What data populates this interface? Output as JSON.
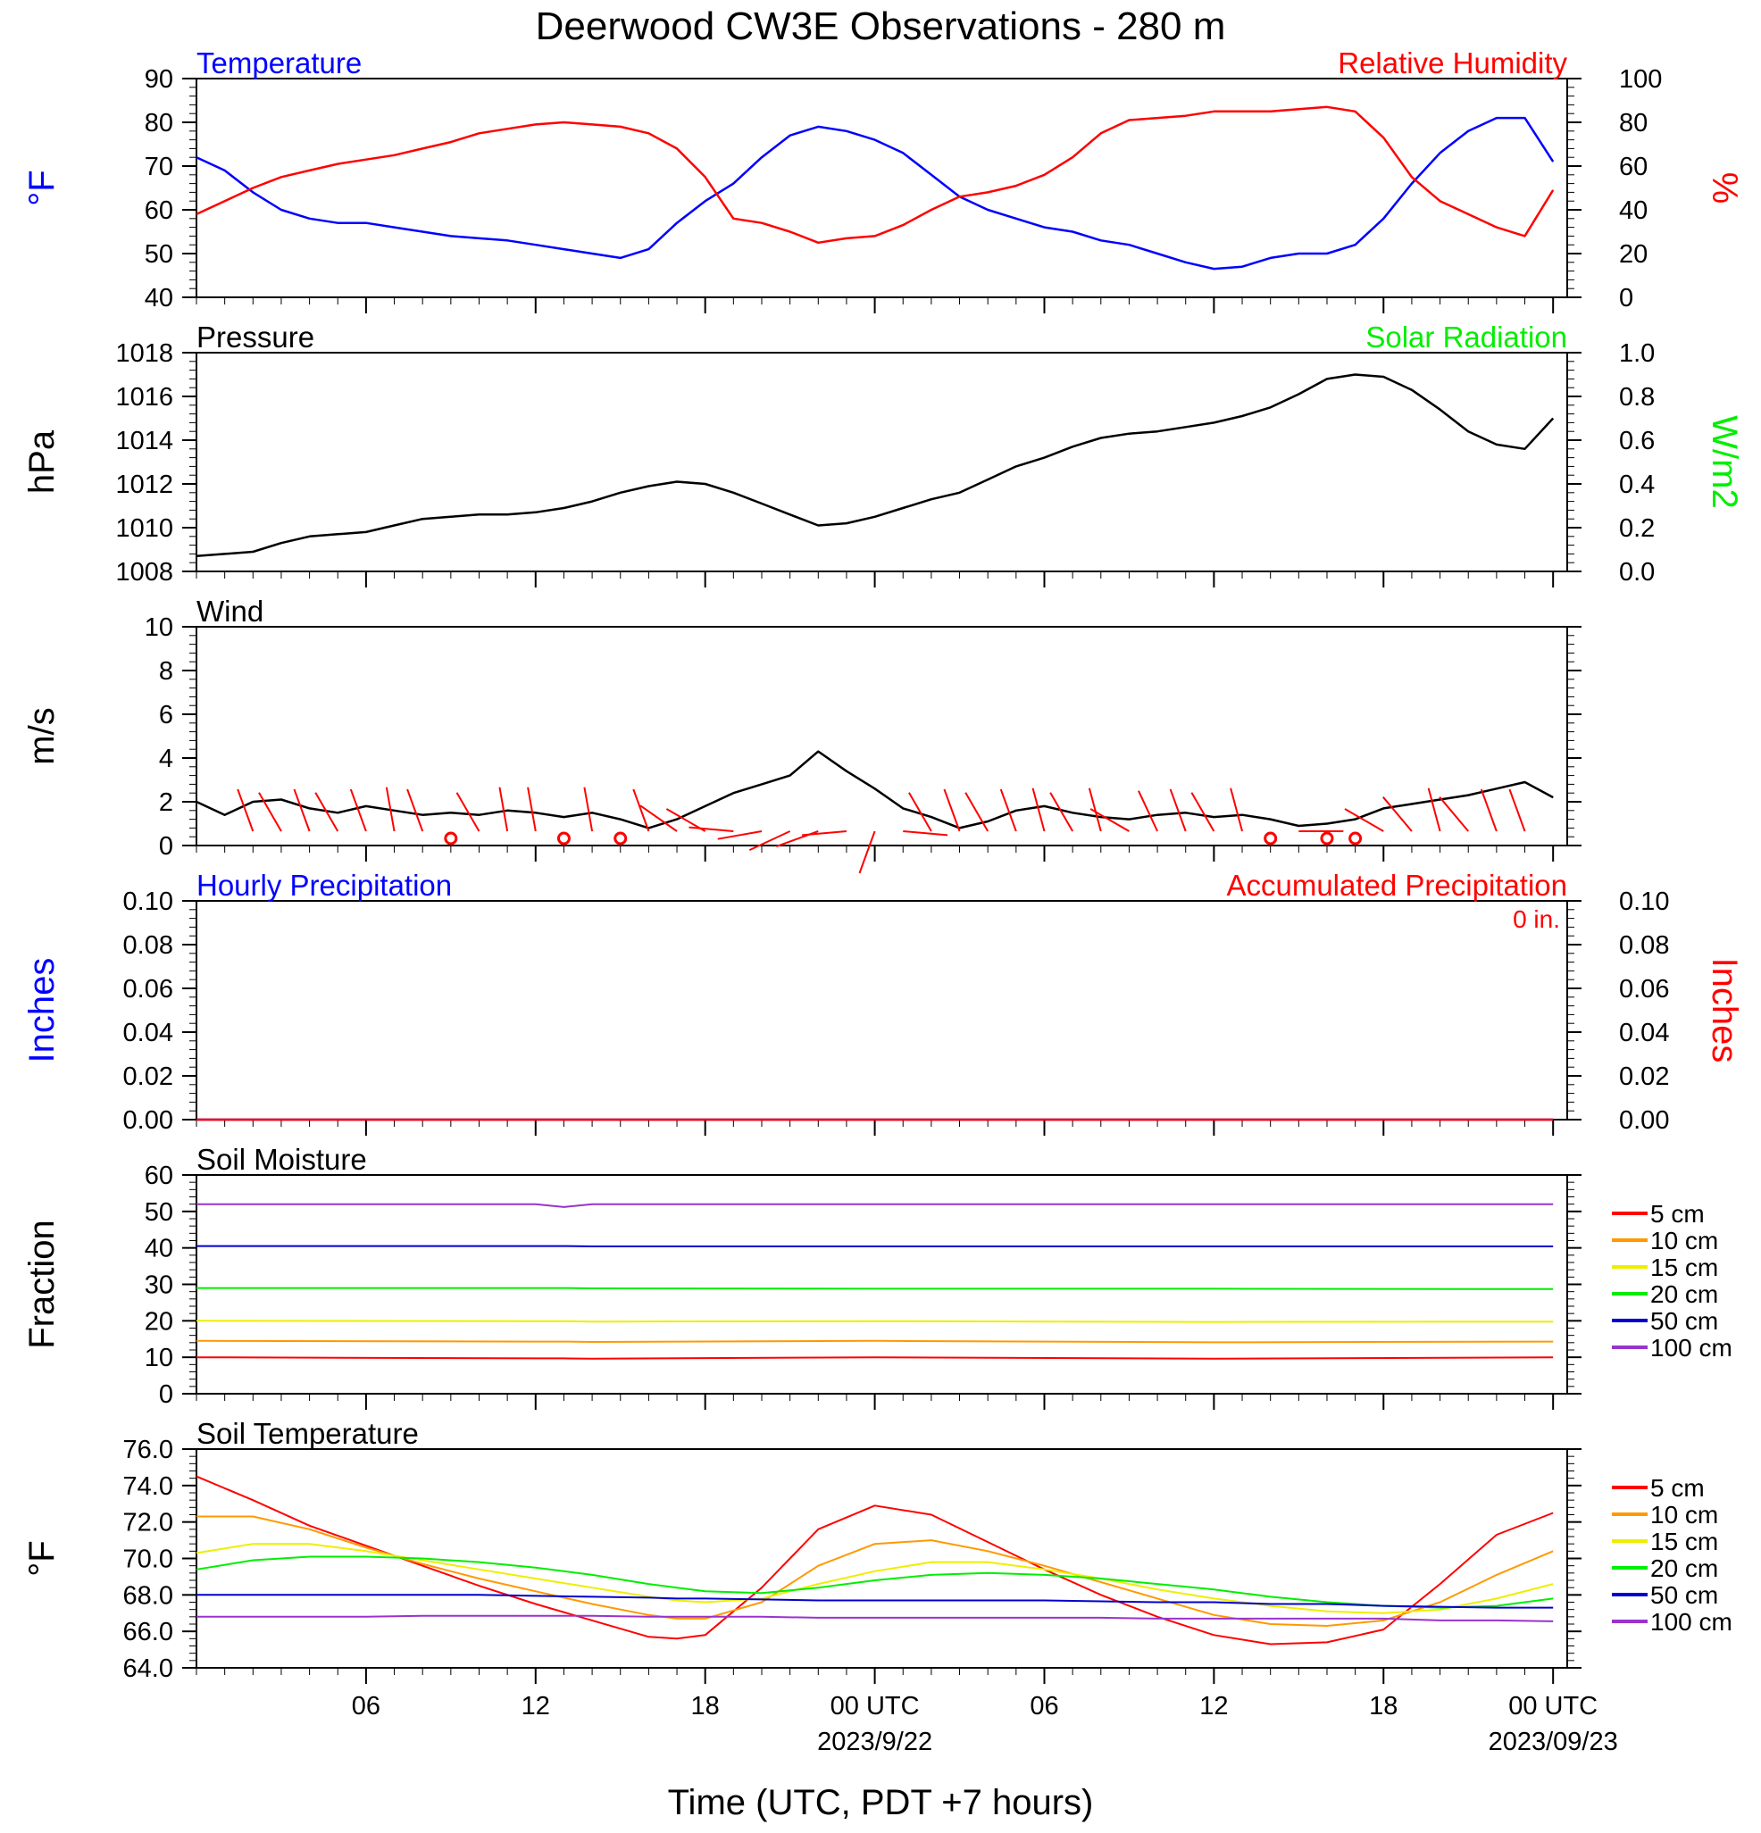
{
  "title": "Deerwood CW3E Observations - 280 m",
  "x_axis": {
    "label": "Time (UTC, PDT +7 hours)",
    "ticks": [
      {
        "h": 6,
        "label": "06"
      },
      {
        "h": 12,
        "label": "12"
      },
      {
        "h": 18,
        "label": "18"
      },
      {
        "h": 24,
        "label": "00 UTC",
        "sub": "2023/9/22"
      },
      {
        "h": 30,
        "label": "06"
      },
      {
        "h": 36,
        "label": "12"
      },
      {
        "h": 42,
        "label": "18"
      },
      {
        "h": 48,
        "label": "00 UTC",
        "sub": "2023/09/23"
      }
    ]
  },
  "colors": {
    "blue": "#0000ff",
    "red": "#ff0000",
    "green": "#00ee00",
    "orange": "#ff9900",
    "yellow": "#eeee00",
    "navy": "#0000cc",
    "purple": "#9933cc"
  },
  "chart_data": [
    {
      "type": "line",
      "title_left": "Temperature",
      "title_right": "Relative Humidity",
      "ylabel_left": "°F",
      "ylabel_right": "%",
      "ylim_left": [
        40,
        90
      ],
      "ylim_right": [
        0,
        100
      ],
      "yticks_left": [
        "40",
        "50",
        "60",
        "70",
        "80",
        "90"
      ],
      "yticks_right": [
        "0",
        "20",
        "40",
        "60",
        "80",
        "100"
      ],
      "x": [
        0,
        1,
        2,
        3,
        4,
        5,
        6,
        7,
        8,
        9,
        10,
        11,
        12,
        13,
        14,
        15,
        16,
        17,
        18,
        19,
        20,
        21,
        22,
        23,
        24,
        25,
        26,
        27,
        28,
        29,
        30,
        31,
        32,
        33,
        34,
        35,
        36,
        37,
        38,
        39,
        40,
        41,
        42,
        43,
        44,
        45,
        46,
        47,
        48
      ],
      "series": [
        {
          "name": "Temperature",
          "axis": "left",
          "color": "#0000ff",
          "values": [
            72,
            69,
            64,
            60,
            58,
            57,
            57,
            56,
            55,
            54,
            53.5,
            53,
            52,
            51,
            50,
            49,
            51,
            57,
            62,
            66,
            72,
            77,
            79,
            78,
            76,
            73,
            68,
            63,
            60,
            58,
            56,
            55,
            53,
            52,
            50,
            48,
            46.5,
            47,
            49,
            50,
            50,
            52,
            58,
            66,
            73,
            78,
            81,
            81,
            71
          ]
        },
        {
          "name": "Relative Humidity",
          "axis": "right",
          "color": "#ff0000",
          "values": [
            38,
            44,
            50,
            55,
            58,
            61,
            63,
            65,
            68,
            71,
            75,
            77,
            79,
            80,
            79,
            78,
            75,
            68,
            55,
            36,
            34,
            30,
            25,
            27,
            28,
            33,
            40,
            46,
            48,
            51,
            56,
            64,
            75,
            81,
            82,
            83,
            85,
            85,
            85,
            86,
            87,
            85,
            73,
            55,
            44,
            38,
            32,
            28,
            49
          ]
        }
      ]
    },
    {
      "type": "line",
      "title_left": "Pressure",
      "title_right": "Solar Radiation",
      "ylabel_left": "hPa",
      "ylabel_right": "W/m2",
      "ylim_left": [
        1008,
        1018
      ],
      "ylim_right": [
        0.0,
        1.0
      ],
      "yticks_left": [
        "1008",
        "1010",
        "1012",
        "1014",
        "1016",
        "1018"
      ],
      "yticks_right": [
        "0.0",
        "0.2",
        "0.4",
        "0.6",
        "0.8",
        "1.0"
      ],
      "x": [
        0,
        1,
        2,
        3,
        4,
        5,
        6,
        7,
        8,
        9,
        10,
        11,
        12,
        13,
        14,
        15,
        16,
        17,
        18,
        19,
        20,
        21,
        22,
        23,
        24,
        25,
        26,
        27,
        28,
        29,
        30,
        31,
        32,
        33,
        34,
        35,
        36,
        37,
        38,
        39,
        40,
        41,
        42,
        43,
        44,
        45,
        46,
        47,
        48
      ],
      "series": [
        {
          "name": "Pressure",
          "axis": "left",
          "color": "#000000",
          "values": [
            1008.7,
            1008.8,
            1008.9,
            1009.3,
            1009.6,
            1009.7,
            1009.8,
            1010.1,
            1010.4,
            1010.5,
            1010.6,
            1010.6,
            1010.7,
            1010.9,
            1011.2,
            1011.6,
            1011.9,
            1012.1,
            1012.0,
            1011.6,
            1011.1,
            1010.6,
            1010.1,
            1010.2,
            1010.5,
            1010.9,
            1011.3,
            1011.6,
            1012.2,
            1012.8,
            1013.2,
            1013.7,
            1014.1,
            1014.3,
            1014.4,
            1014.6,
            1014.8,
            1015.1,
            1015.5,
            1016.1,
            1016.8,
            1017.0,
            1016.9,
            1016.3,
            1015.4,
            1014.4,
            1013.8,
            1013.6,
            1015.0
          ]
        }
      ]
    },
    {
      "type": "line",
      "title_left": "Wind",
      "ylabel_left": "m/s",
      "ylim_left": [
        0,
        10
      ],
      "yticks_left": [
        "0",
        "2",
        "4",
        "6",
        "8",
        "10"
      ],
      "x": [
        0,
        1,
        2,
        3,
        4,
        5,
        6,
        7,
        8,
        9,
        10,
        11,
        12,
        13,
        14,
        15,
        16,
        17,
        18,
        19,
        20,
        21,
        22,
        23,
        24,
        25,
        26,
        27,
        28,
        29,
        30,
        31,
        32,
        33,
        34,
        35,
        36,
        37,
        38,
        39,
        40,
        41,
        42,
        43,
        44,
        45,
        46,
        47,
        48
      ],
      "series": [
        {
          "name": "Wind speed",
          "axis": "left",
          "color": "#000000",
          "values": [
            2.0,
            1.4,
            2.0,
            2.1,
            1.7,
            1.5,
            1.8,
            1.6,
            1.4,
            1.5,
            1.4,
            1.6,
            1.5,
            1.3,
            1.5,
            1.2,
            0.8,
            1.2,
            1.8,
            2.4,
            2.8,
            3.2,
            4.3,
            3.4,
            2.6,
            1.7,
            1.3,
            0.8,
            1.1,
            1.6,
            1.8,
            1.5,
            1.3,
            1.2,
            1.4,
            1.5,
            1.3,
            1.4,
            1.2,
            0.9,
            1.0,
            1.2,
            1.7,
            1.9,
            2.1,
            2.3,
            2.6,
            2.9,
            2.2
          ]
        }
      ]
    },
    {
      "type": "line",
      "title_left": "Hourly Precipitation",
      "title_right": "Accumulated Precipitation",
      "annotation": "0 in.",
      "ylabel_left": "Inches",
      "ylabel_right": "Inches",
      "ylim_left": [
        0.0,
        0.1
      ],
      "ylim_right": [
        0.0,
        0.1
      ],
      "yticks_left": [
        "0.00",
        "0.02",
        "0.04",
        "0.06",
        "0.08",
        "0.10"
      ],
      "yticks_right": [
        "0.00",
        "0.02",
        "0.04",
        "0.06",
        "0.08",
        "0.10"
      ],
      "x": [
        0,
        48
      ],
      "series": [
        {
          "name": "Hourly Precipitation",
          "axis": "left",
          "color": "#0000ff",
          "values": [
            0,
            0
          ]
        },
        {
          "name": "Accumulated Precipitation",
          "axis": "right",
          "color": "#ff0000",
          "values": [
            0,
            0
          ]
        }
      ]
    },
    {
      "type": "line",
      "title_left": "Soil Moisture",
      "ylabel_left": "Fraction",
      "ylim_left": [
        0,
        60
      ],
      "yticks_left": [
        "0",
        "10",
        "20",
        "30",
        "40",
        "50",
        "60"
      ],
      "x": [
        0,
        12,
        13,
        14,
        24,
        36,
        48
      ],
      "series": [
        {
          "name": "5 cm",
          "axis": "left",
          "color": "#ff0000",
          "values": [
            10.0,
            9.7,
            9.7,
            9.6,
            10.0,
            9.6,
            10.0
          ]
        },
        {
          "name": "10 cm",
          "axis": "left",
          "color": "#ff9900",
          "values": [
            14.5,
            14.3,
            14.3,
            14.2,
            14.5,
            14.1,
            14.3
          ]
        },
        {
          "name": "15 cm",
          "axis": "left",
          "color": "#eeee00",
          "values": [
            20.0,
            19.9,
            19.9,
            19.8,
            19.9,
            19.7,
            19.8
          ]
        },
        {
          "name": "20 cm",
          "axis": "left",
          "color": "#00ee00",
          "values": [
            29.0,
            29.0,
            29.0,
            28.9,
            28.8,
            28.8,
            28.7
          ]
        },
        {
          "name": "50 cm",
          "axis": "left",
          "color": "#0000cc",
          "values": [
            40.5,
            40.5,
            40.5,
            40.4,
            40.4,
            40.4,
            40.4
          ]
        },
        {
          "name": "100 cm",
          "axis": "left",
          "color": "#9933cc",
          "values": [
            52.0,
            52.0,
            51.2,
            52.0,
            52.0,
            52.0,
            52.0
          ]
        }
      ]
    },
    {
      "type": "line",
      "title_left": "Soil Temperature",
      "ylabel_left": "°F",
      "ylim_left": [
        64.0,
        76.0
      ],
      "yticks_left": [
        "64.0",
        "66.0",
        "68.0",
        "70.0",
        "72.0",
        "74.0",
        "76.0"
      ],
      "x": [
        0,
        2,
        4,
        6,
        8,
        10,
        12,
        14,
        16,
        17,
        18,
        20,
        22,
        24,
        26,
        28,
        30,
        32,
        34,
        36,
        38,
        40,
        42,
        44,
        46,
        48
      ],
      "series": [
        {
          "name": "5 cm",
          "axis": "left",
          "color": "#ff0000",
          "values": [
            74.5,
            73.2,
            71.8,
            70.7,
            69.6,
            68.5,
            67.5,
            66.6,
            65.7,
            65.6,
            65.8,
            68.4,
            71.6,
            72.9,
            72.4,
            70.9,
            69.4,
            68.0,
            66.8,
            65.8,
            65.3,
            65.4,
            66.1,
            68.6,
            71.3,
            72.5
          ]
        },
        {
          "name": "10 cm",
          "axis": "left",
          "color": "#ff9900",
          "values": [
            72.3,
            72.3,
            71.6,
            70.6,
            69.7,
            68.9,
            68.2,
            67.5,
            66.9,
            66.7,
            66.7,
            67.6,
            69.6,
            70.8,
            71.0,
            70.4,
            69.6,
            68.7,
            67.8,
            66.9,
            66.4,
            66.3,
            66.6,
            67.6,
            69.1,
            70.4
          ]
        },
        {
          "name": "15 cm",
          "axis": "left",
          "color": "#eeee00",
          "values": [
            70.3,
            70.8,
            70.8,
            70.4,
            69.9,
            69.4,
            68.9,
            68.4,
            67.9,
            67.7,
            67.6,
            67.8,
            68.6,
            69.3,
            69.8,
            69.8,
            69.4,
            68.9,
            68.3,
            67.8,
            67.4,
            67.1,
            67.0,
            67.2,
            67.8,
            68.6
          ]
        },
        {
          "name": "20 cm",
          "axis": "left",
          "color": "#00ee00",
          "values": [
            69.4,
            69.9,
            70.1,
            70.1,
            70.0,
            69.8,
            69.5,
            69.1,
            68.6,
            68.4,
            68.2,
            68.1,
            68.4,
            68.8,
            69.1,
            69.2,
            69.1,
            68.9,
            68.6,
            68.3,
            67.9,
            67.6,
            67.4,
            67.3,
            67.4,
            67.8
          ]
        },
        {
          "name": "50 cm",
          "axis": "left",
          "color": "#0000cc",
          "values": [
            68.0,
            68.0,
            68.0,
            68.0,
            68.0,
            68.0,
            67.95,
            67.9,
            67.85,
            67.8,
            67.8,
            67.75,
            67.7,
            67.7,
            67.7,
            67.7,
            67.7,
            67.65,
            67.6,
            67.6,
            67.5,
            67.5,
            67.4,
            67.35,
            67.3,
            67.3
          ]
        },
        {
          "name": "100 cm",
          "axis": "left",
          "color": "#9933cc",
          "values": [
            66.8,
            66.8,
            66.8,
            66.8,
            66.85,
            66.85,
            66.85,
            66.85,
            66.8,
            66.8,
            66.8,
            66.8,
            66.75,
            66.75,
            66.75,
            66.75,
            66.75,
            66.75,
            66.7,
            66.7,
            66.7,
            66.7,
            66.7,
            66.6,
            66.6,
            66.55
          ]
        }
      ]
    }
  ],
  "wind_barbs": [
    {
      "h": 2,
      "dir": 340
    },
    {
      "h": 3,
      "dir": 330
    },
    {
      "h": 4,
      "dir": 340
    },
    {
      "h": 5,
      "dir": 330
    },
    {
      "h": 6,
      "dir": 340
    },
    {
      "h": 7,
      "dir": 350
    },
    {
      "h": 8,
      "dir": 340
    },
    {
      "h": 9,
      "calm": true
    },
    {
      "h": 10,
      "dir": 330
    },
    {
      "h": 11,
      "dir": 350
    },
    {
      "h": 12,
      "dir": 350
    },
    {
      "h": 13,
      "calm": true
    },
    {
      "h": 14,
      "dir": 350
    },
    {
      "h": 15,
      "calm": true
    },
    {
      "h": 16,
      "dir": 340
    },
    {
      "h": 17,
      "dir": 305
    },
    {
      "h": 18,
      "dir": 300
    },
    {
      "h": 19,
      "dir": 275
    },
    {
      "h": 20,
      "dir": 260
    },
    {
      "h": 21,
      "dir": 245
    },
    {
      "h": 22,
      "dir": 250
    },
    {
      "h": 23,
      "dir": 265
    },
    {
      "h": 24,
      "dir": 200
    },
    {
      "h": 25,
      "dir": 95
    },
    {
      "h": 26,
      "dir": 330
    },
    {
      "h": 27,
      "dir": 340
    },
    {
      "h": 28,
      "dir": 330
    },
    {
      "h": 29,
      "dir": 340
    },
    {
      "h": 30,
      "dir": 345
    },
    {
      "h": 31,
      "dir": 330
    },
    {
      "h": 32,
      "dir": 345
    },
    {
      "h": 33,
      "dir": 300
    },
    {
      "h": 34,
      "dir": 335
    },
    {
      "h": 35,
      "dir": 340
    },
    {
      "h": 36,
      "dir": 330
    },
    {
      "h": 37,
      "dir": 345
    },
    {
      "h": 38,
      "calm": true
    },
    {
      "h": 39,
      "dir": 90
    },
    {
      "h": 40,
      "calm": true
    },
    {
      "h": 41,
      "calm": true
    },
    {
      "h": 42,
      "dir": 300
    },
    {
      "h": 43,
      "dir": 320
    },
    {
      "h": 44,
      "dir": 345
    },
    {
      "h": 45,
      "dir": 320
    },
    {
      "h": 46,
      "dir": 340
    },
    {
      "h": 47,
      "dir": 340
    }
  ]
}
